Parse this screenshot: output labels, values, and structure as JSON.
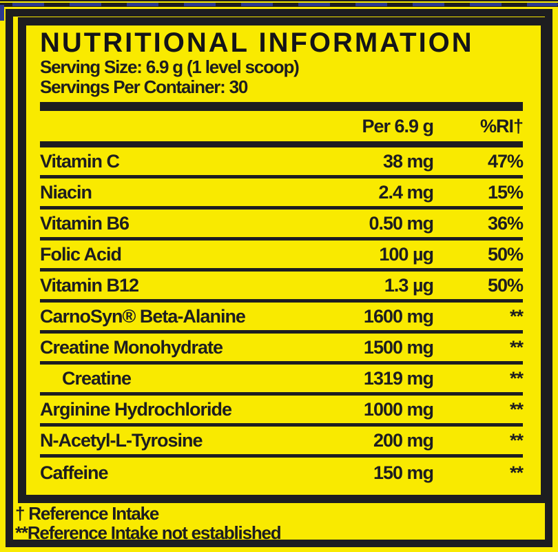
{
  "label": {
    "title": "NUTRITIONAL INFORMATION",
    "serving_size": "Serving Size: 6.9 g (1 level scoop)",
    "servings_per_container": "Servings Per Container: 30",
    "columns": {
      "amount": "Per 6.9 g",
      "ri": "%RI†"
    },
    "rows": [
      {
        "name": "Vitamin C",
        "amount": "38 mg",
        "ri": "47%"
      },
      {
        "name": "Niacin",
        "amount": "2.4 mg",
        "ri": "15%"
      },
      {
        "name": "Vitamin B6",
        "amount": "0.50 mg",
        "ri": "36%"
      },
      {
        "name": "Folic Acid",
        "amount": "100 µg",
        "ri": "50%"
      },
      {
        "name": "Vitamin B12",
        "amount": "1.3 µg",
        "ri": "50%"
      },
      {
        "name": "CarnoSyn® Beta-Alanine",
        "amount": "1600 mg",
        "ri": "**"
      },
      {
        "name": "Creatine Monohydrate",
        "amount": "1500 mg",
        "ri": "**"
      },
      {
        "name": "Creatine",
        "amount": "1319 mg",
        "ri": "**"
      },
      {
        "name": "Arginine Hydrochloride",
        "amount": "1000 mg",
        "ri": "**"
      },
      {
        "name": "N-Acetyl-L-Tyrosine",
        "amount": "200 mg",
        "ri": "**"
      },
      {
        "name": "Caffeine",
        "amount": "150 mg",
        "ri": "**"
      }
    ],
    "footnotes": [
      "† Reference Intake",
      "**Reference Intake not established"
    ],
    "colors": {
      "yellow": "#F9EA00",
      "ink": "#1D1D20",
      "blue": "#2B3990"
    }
  }
}
